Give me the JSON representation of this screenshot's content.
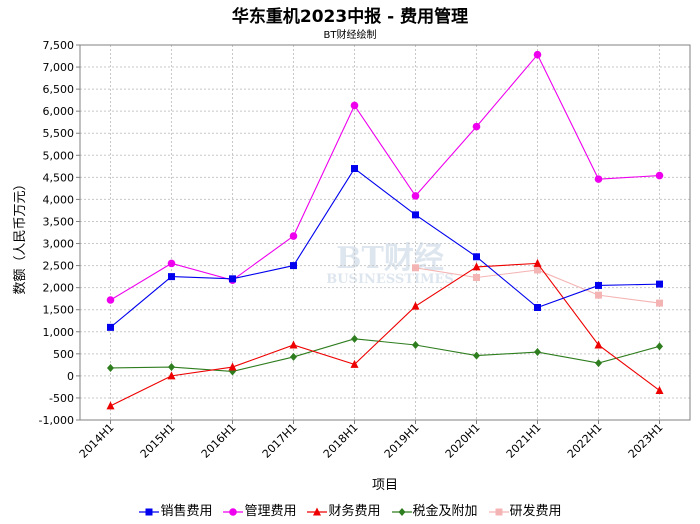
{
  "chart_data": {
    "type": "line",
    "title": "华东重机2023中报 - 费用管理",
    "subtitle": "BT财经绘制",
    "xlabel": "项目",
    "ylabel": "数额（人民币万元）",
    "categories": [
      "2014H1",
      "2015H1",
      "2016H1",
      "2017H1",
      "2018H1",
      "2019H1",
      "2020H1",
      "2021H1",
      "2022H1",
      "2023H1"
    ],
    "ylim": [
      -1000,
      7500
    ],
    "yticks": [
      -1000,
      -500,
      0,
      500,
      1000,
      1500,
      2000,
      2500,
      3000,
      3500,
      4000,
      4500,
      5000,
      5500,
      6000,
      6500,
      7000,
      7500
    ],
    "ytick_labels": [
      "-1,000",
      "-500",
      "0",
      "500",
      "1,000",
      "1,500",
      "2,000",
      "2,500",
      "3,000",
      "3,500",
      "4,000",
      "4,500",
      "5,000",
      "5,500",
      "6,000",
      "6,500",
      "7,000",
      "7,500"
    ],
    "grid": true,
    "legend_position": "bottom",
    "series": [
      {
        "name": "销售费用",
        "color": "#0000ee",
        "marker": "square",
        "values": [
          1100,
          2250,
          2200,
          2500,
          4700,
          3650,
          2700,
          1550,
          2050,
          2080
        ]
      },
      {
        "name": "管理费用",
        "color": "#ee00ee",
        "marker": "circle",
        "values": [
          1720,
          2550,
          2170,
          3170,
          6130,
          4080,
          5650,
          7280,
          4460,
          4540
        ]
      },
      {
        "name": "财务费用",
        "color": "#ee0000",
        "marker": "triangle",
        "values": [
          -680,
          0,
          200,
          700,
          260,
          1580,
          2470,
          2550,
          700,
          -330
        ]
      },
      {
        "name": "税金及附加",
        "color": "#2e7d1e",
        "marker": "diamond",
        "values": [
          180,
          200,
          100,
          430,
          840,
          700,
          460,
          540,
          290,
          670
        ]
      },
      {
        "name": "研发费用",
        "color": "#f4b4b4",
        "marker": "square",
        "values": [
          null,
          null,
          null,
          null,
          null,
          2450,
          2230,
          2400,
          1830,
          1650
        ]
      }
    ]
  },
  "watermark": {
    "text": "BT财经",
    "subtext": "BUSINESSTIMES"
  }
}
